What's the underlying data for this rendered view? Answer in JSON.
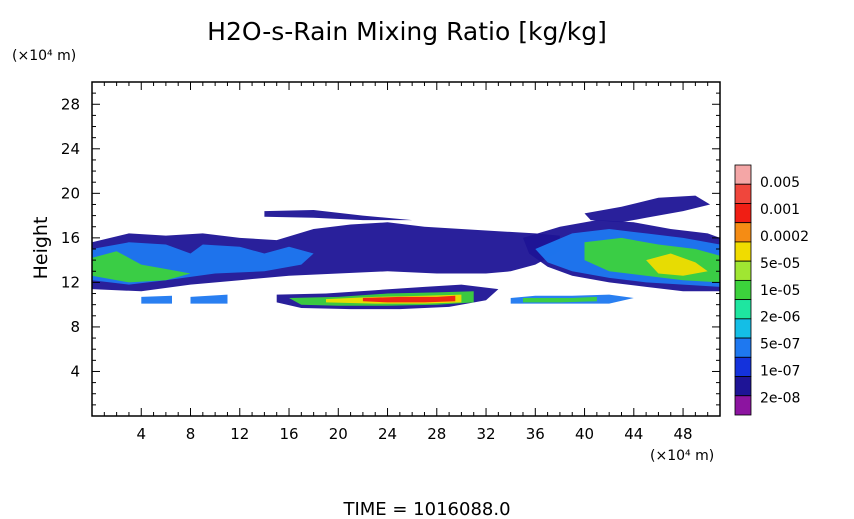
{
  "chart_data": {
    "type": "heatmap",
    "title": "H2O-s-Rain Mixing Ratio [kg/kg]",
    "ylabel": "Height",
    "y_unit": "(×10⁴ m)",
    "x_unit": "(×10⁴ m)",
    "footer": "TIME  =  1016088.0",
    "xlim": [
      0,
      51
    ],
    "ylim": [
      0,
      30
    ],
    "x_ticks": [
      4,
      8,
      12,
      16,
      20,
      24,
      28,
      32,
      36,
      40,
      44,
      48
    ],
    "y_ticks": [
      4,
      8,
      12,
      16,
      20,
      24,
      28
    ],
    "colorbar": {
      "labels": [
        "0.005",
        "0.001",
        "0.0002",
        "5e-05",
        "1e-05",
        "2e-06",
        "5e-07",
        "1e-07",
        "2e-08"
      ],
      "colors": [
        "#f4a6a6",
        "#f0463c",
        "#f01e14",
        "#f58c14",
        "#f0dc00",
        "#a0e632",
        "#3cd23c",
        "#1ee6a0",
        "#14bee6",
        "#1e78f0",
        "#1432dc",
        "#1e1496",
        "#8c14a0"
      ]
    },
    "regions": [
      {
        "level": "2e-08",
        "points": [
          [
            0,
            15.6
          ],
          [
            3,
            16.4
          ],
          [
            6,
            16.2
          ],
          [
            9,
            16.4
          ],
          [
            12,
            16
          ],
          [
            15,
            15.8
          ],
          [
            18,
            16.8
          ],
          [
            21,
            17.2
          ],
          [
            24,
            17.4
          ],
          [
            27,
            17
          ],
          [
            30,
            16.8
          ],
          [
            33,
            16.6
          ],
          [
            36,
            16.4
          ],
          [
            38,
            16.2
          ],
          [
            38,
            14.8
          ],
          [
            36,
            13.6
          ],
          [
            34,
            13
          ],
          [
            32,
            12.8
          ],
          [
            28,
            12.8
          ],
          [
            24,
            13
          ],
          [
            20,
            12.8
          ],
          [
            16,
            12.6
          ],
          [
            12,
            12.2
          ],
          [
            8,
            11.8
          ],
          [
            4,
            11.2
          ],
          [
            0,
            11.4
          ]
        ]
      },
      {
        "level": "2e-08",
        "points": [
          [
            14,
            18.4
          ],
          [
            18,
            18.5
          ],
          [
            22,
            18
          ],
          [
            26,
            17.6
          ],
          [
            22,
            17.6
          ],
          [
            18,
            17.8
          ],
          [
            14,
            17.9
          ]
        ]
      },
      {
        "level": "2e-08",
        "points": [
          [
            40,
            18.2
          ],
          [
            43,
            18.8
          ],
          [
            46,
            19.6
          ],
          [
            49,
            19.8
          ],
          [
            50.2,
            19
          ],
          [
            48,
            18.4
          ],
          [
            45,
            17.8
          ],
          [
            43,
            17.4
          ],
          [
            40.5,
            17.6
          ]
        ]
      },
      {
        "level": "2e-08",
        "points": [
          [
            35,
            16
          ],
          [
            38,
            17
          ],
          [
            41,
            17.6
          ],
          [
            44,
            17.4
          ],
          [
            47,
            16.8
          ],
          [
            50,
            16.4
          ],
          [
            51,
            16
          ],
          [
            51,
            11.2
          ],
          [
            48,
            11.2
          ],
          [
            45,
            11.6
          ],
          [
            42,
            12
          ],
          [
            39,
            12.6
          ],
          [
            37,
            13.4
          ],
          [
            35.5,
            14.6
          ]
        ]
      },
      {
        "level": "5e-07",
        "points": [
          [
            0,
            15
          ],
          [
            3,
            15.6
          ],
          [
            6,
            15.4
          ],
          [
            8,
            14.6
          ],
          [
            9,
            15.4
          ],
          [
            12,
            15.2
          ],
          [
            14,
            14.6
          ],
          [
            16,
            15.2
          ],
          [
            18,
            14.6
          ],
          [
            17,
            13.6
          ],
          [
            14,
            13
          ],
          [
            10,
            12.8
          ],
          [
            6,
            12.2
          ],
          [
            3,
            11.8
          ],
          [
            0,
            12.2
          ]
        ]
      },
      {
        "level": "5e-07",
        "points": [
          [
            36,
            15
          ],
          [
            39,
            16.4
          ],
          [
            42,
            16.8
          ],
          [
            45,
            16.4
          ],
          [
            48,
            16
          ],
          [
            51,
            15.4
          ],
          [
            51,
            11.6
          ],
          [
            48,
            11.8
          ],
          [
            45,
            12
          ],
          [
            42,
            12.4
          ],
          [
            39,
            13
          ],
          [
            37,
            13.8
          ]
        ]
      },
      {
        "level": "1e-05",
        "points": [
          [
            0,
            14.2
          ],
          [
            2,
            14.8
          ],
          [
            4,
            13.6
          ],
          [
            6,
            13.2
          ],
          [
            8,
            12.8
          ],
          [
            6,
            12.2
          ],
          [
            3,
            12
          ],
          [
            0,
            12.6
          ]
        ]
      },
      {
        "level": "1e-05",
        "points": [
          [
            40,
            15.6
          ],
          [
            43,
            16
          ],
          [
            46,
            15.4
          ],
          [
            49,
            15
          ],
          [
            51,
            14.4
          ],
          [
            51,
            12
          ],
          [
            48,
            12.2
          ],
          [
            45,
            12.6
          ],
          [
            42,
            13
          ],
          [
            40,
            14
          ]
        ]
      },
      {
        "level": "2e-04",
        "points": [
          [
            45,
            14
          ],
          [
            47,
            14.6
          ],
          [
            49,
            13.8
          ],
          [
            50,
            13
          ],
          [
            48,
            12.6
          ],
          [
            46,
            12.8
          ]
        ]
      },
      {
        "level": "2e-08",
        "points": [
          [
            15,
            10.9
          ],
          [
            19,
            11
          ],
          [
            23,
            11.3
          ],
          [
            27,
            11.6
          ],
          [
            30,
            11.8
          ],
          [
            33,
            11.4
          ],
          [
            32,
            10.4
          ],
          [
            29,
            9.8
          ],
          [
            25,
            9.6
          ],
          [
            21,
            9.6
          ],
          [
            17,
            9.7
          ],
          [
            15,
            10.2
          ]
        ]
      },
      {
        "level": "1e-05",
        "points": [
          [
            16,
            10.6
          ],
          [
            20,
            10.7
          ],
          [
            24,
            11
          ],
          [
            28,
            11.1
          ],
          [
            31,
            11.2
          ],
          [
            31,
            10.2
          ],
          [
            28,
            10
          ],
          [
            24,
            9.9
          ],
          [
            20,
            9.9
          ],
          [
            17,
            10
          ]
        ]
      },
      {
        "level": "2e-04",
        "points": [
          [
            19,
            10.5
          ],
          [
            23,
            10.7
          ],
          [
            27,
            10.8
          ],
          [
            30,
            10.9
          ],
          [
            30,
            10.2
          ],
          [
            27,
            10.1
          ],
          [
            23,
            10.1
          ],
          [
            19,
            10.2
          ]
        ]
      },
      {
        "level": "0.001",
        "points": [
          [
            22,
            10.6
          ],
          [
            25,
            10.7
          ],
          [
            28,
            10.7
          ],
          [
            29.5,
            10.8
          ],
          [
            29.5,
            10.3
          ],
          [
            27,
            10.2
          ],
          [
            24,
            10.2
          ],
          [
            22,
            10.3
          ]
        ]
      },
      {
        "level": "5e-07",
        "points": [
          [
            4,
            10.7
          ],
          [
            6.5,
            10.8
          ],
          [
            6.5,
            10.1
          ],
          [
            4,
            10.1
          ]
        ]
      },
      {
        "level": "5e-07",
        "points": [
          [
            8,
            10.7
          ],
          [
            11,
            10.9
          ],
          [
            11,
            10.1
          ],
          [
            8,
            10.1
          ]
        ]
      },
      {
        "level": "5e-07",
        "points": [
          [
            34,
            10.6
          ],
          [
            36,
            10.8
          ],
          [
            39,
            10.8
          ],
          [
            42,
            10.9
          ],
          [
            44,
            10.6
          ],
          [
            42,
            10.1
          ],
          [
            38,
            10.1
          ],
          [
            34,
            10.1
          ]
        ]
      },
      {
        "level": "1e-05",
        "points": [
          [
            35,
            10.6
          ],
          [
            39,
            10.6
          ],
          [
            41,
            10.7
          ],
          [
            41,
            10.3
          ],
          [
            38,
            10.2
          ],
          [
            35,
            10.2
          ]
        ]
      }
    ]
  }
}
